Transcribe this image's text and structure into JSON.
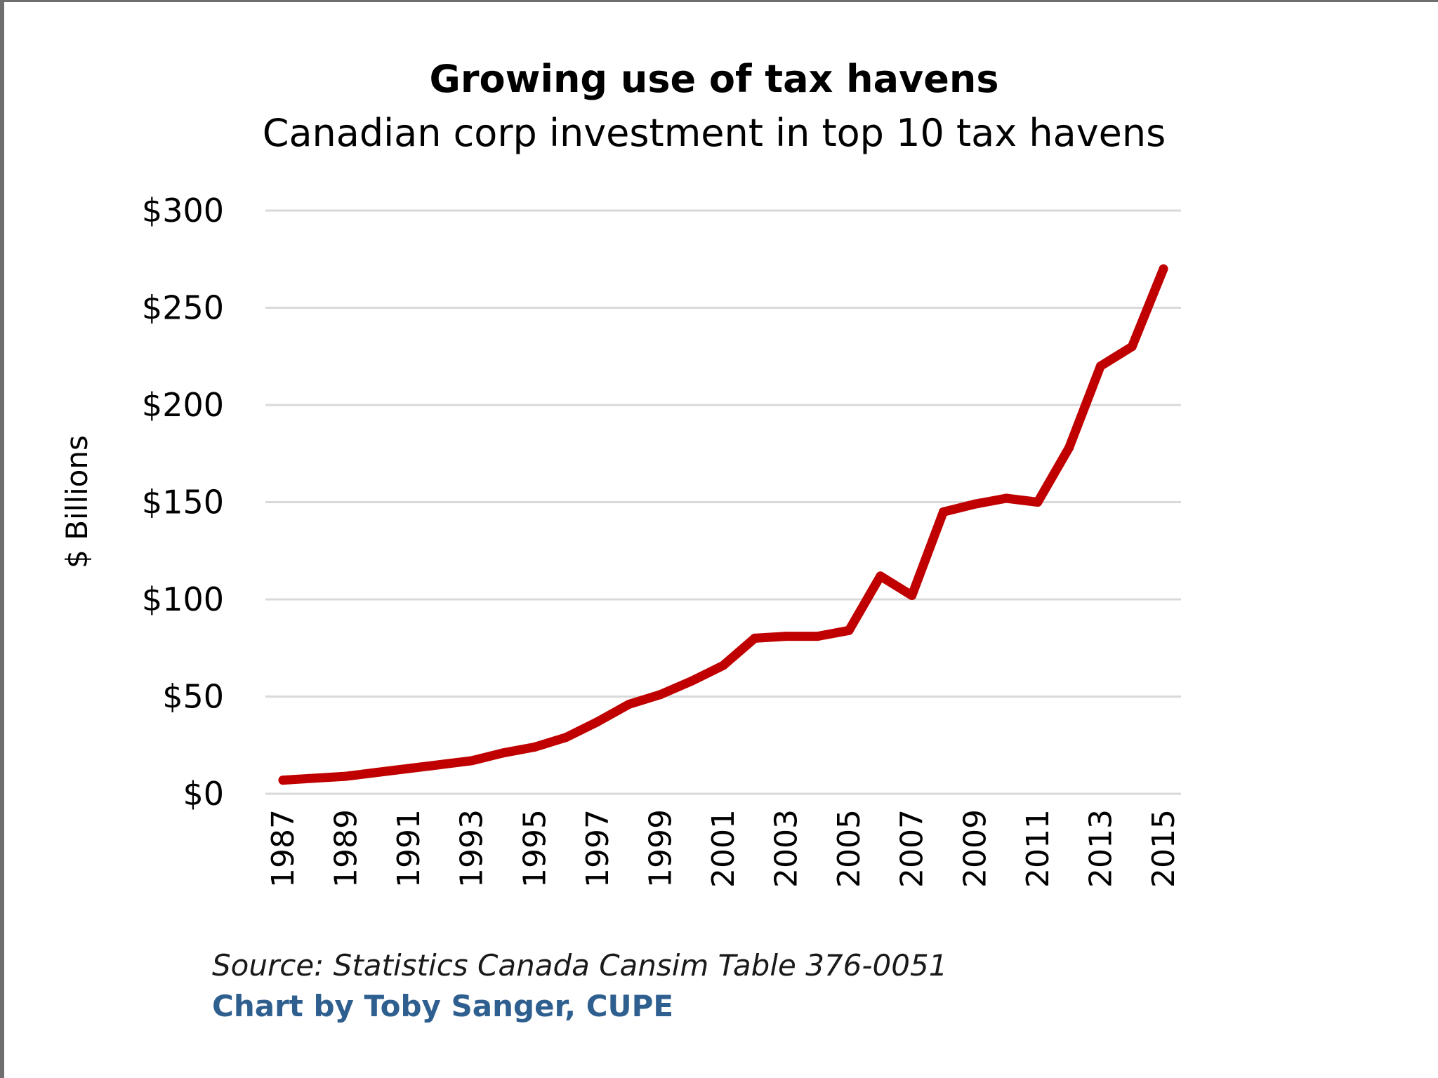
{
  "chart_data": {
    "type": "line",
    "title": "Growing use of tax havens",
    "subtitle": "Canadian corp investment in top 10 tax havens",
    "xlabel": "",
    "ylabel": "$ Billions",
    "ylim": [
      0,
      300
    ],
    "yticks": [
      {
        "value": 0,
        "label": "$0"
      },
      {
        "value": 50,
        "label": "$50"
      },
      {
        "value": 100,
        "label": "$100"
      },
      {
        "value": 150,
        "label": "$150"
      },
      {
        "value": 200,
        "label": "$200"
      },
      {
        "value": 250,
        "label": "$250"
      },
      {
        "value": 300,
        "label": "$300"
      }
    ],
    "xticks": [
      "1987",
      "1989",
      "1991",
      "1993",
      "1995",
      "1997",
      "1999",
      "2001",
      "2003",
      "2005",
      "2007",
      "2009",
      "2011",
      "2013",
      "2015"
    ],
    "grid": true,
    "legend": "none",
    "series": [
      {
        "color": "#c00000",
        "x": [
          1987,
          1988,
          1989,
          1990,
          1991,
          1992,
          1993,
          1994,
          1995,
          1996,
          1997,
          1998,
          1999,
          2000,
          2001,
          2002,
          2003,
          2004,
          2005,
          2006,
          2007,
          2008,
          2009,
          2010,
          2011,
          2012,
          2013,
          2014,
          2015
        ],
        "values": [
          7,
          8,
          9,
          11,
          13,
          15,
          17,
          21,
          24,
          29,
          37,
          46,
          51,
          58,
          66,
          80,
          81,
          81,
          84,
          112,
          102,
          145,
          149,
          152,
          150,
          178,
          220,
          230,
          270
        ]
      }
    ]
  },
  "notes": {
    "source": "Source: Statistics Canada Cansim Table 376-0051",
    "credit": "Chart by Toby Sanger, CUPE"
  },
  "colors": {
    "line": "#c00000",
    "grid": "#d9d9d9",
    "credit": "#2e5f8f"
  }
}
